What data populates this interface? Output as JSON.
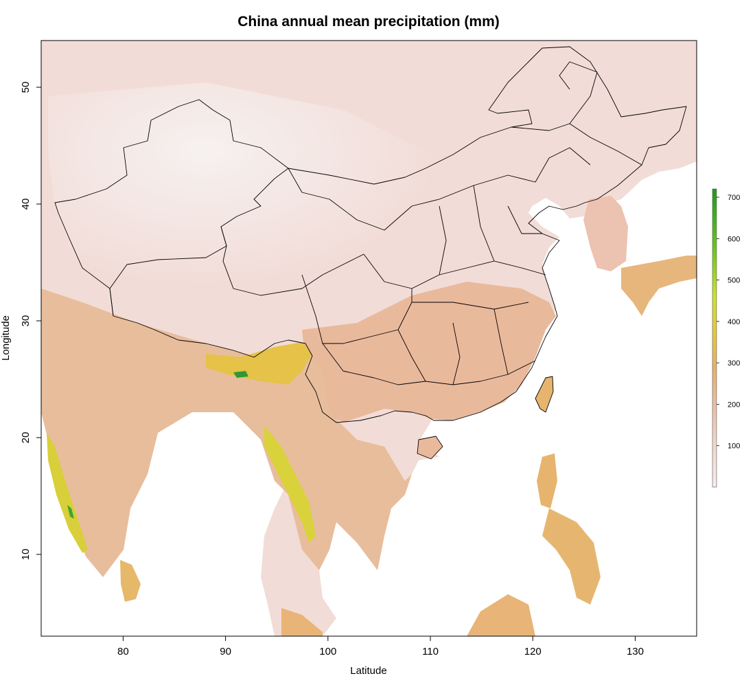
{
  "title": "China annual mean precipitation (mm)",
  "xlabel": "Latitude",
  "ylabel": "Longitude",
  "x_ticks": [
    80,
    90,
    100,
    110,
    120,
    130
  ],
  "y_ticks": [
    10,
    20,
    30,
    40,
    50
  ],
  "xlim": [
    72,
    136
  ],
  "ylim": [
    3,
    54
  ],
  "colorbar": {
    "ticks": [
      100,
      200,
      300,
      400,
      500,
      600,
      700
    ],
    "range": [
      0,
      720
    ],
    "colors": [
      "#f7ecec",
      "#f0d6cd",
      "#e9bfa2",
      "#e8b067",
      "#e6c93d",
      "#cfe02a",
      "#6cc51f",
      "#1e9a1e"
    ]
  },
  "colors": {
    "dry_north": "#f2dcd7",
    "arid_west": "#f4efee",
    "humid_south": "#e9b99c",
    "tropical": "#e7b471",
    "very_wet": "#cfe02a",
    "peak": "#3fb02a",
    "ocean": "#ffffff"
  }
}
